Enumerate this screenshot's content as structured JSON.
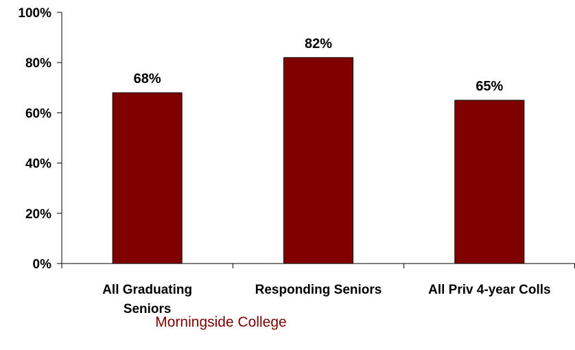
{
  "chart_data": {
    "type": "bar",
    "categories": [
      [
        "All Graduating",
        "Seniors"
      ],
      [
        "Responding Seniors"
      ],
      [
        "All Priv 4-year Colls"
      ]
    ],
    "values": [
      68,
      82,
      65
    ],
    "data_labels": [
      "68%",
      "82%",
      "65%"
    ],
    "ylim": [
      0,
      100
    ],
    "yticks": [
      0,
      20,
      40,
      60,
      80,
      100
    ],
    "ytick_labels": [
      "0%",
      "20%",
      "40%",
      "60%",
      "80%",
      "100%"
    ],
    "title": "",
    "xlabel": "",
    "ylabel": "",
    "grid": false,
    "legend": "none",
    "bar_color": "#800000",
    "bar_border_color": "#000000"
  },
  "footnote": {
    "text": "Morningside College",
    "color": "#7b0000"
  }
}
